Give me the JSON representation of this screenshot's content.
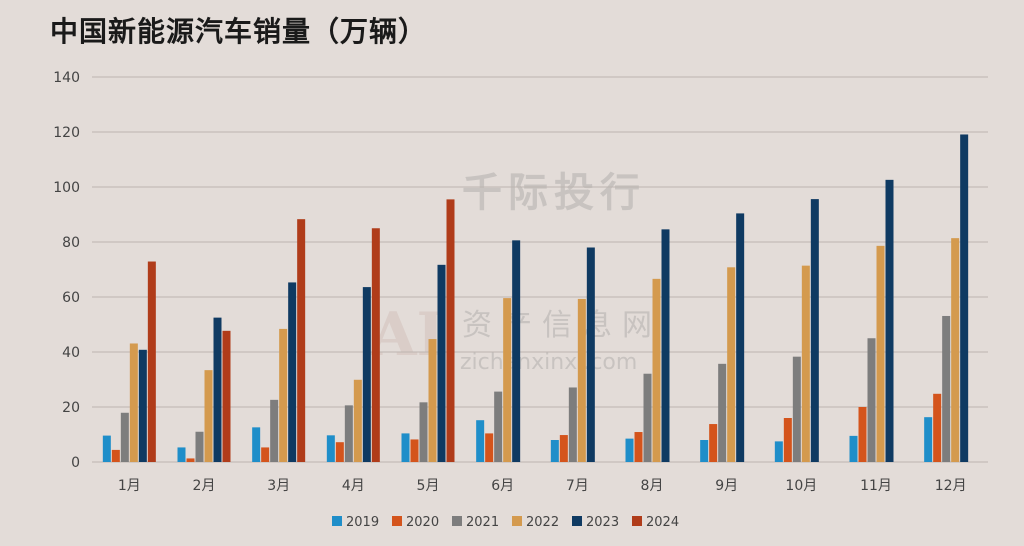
{
  "title": "中国新能源汽车销量（万辆）",
  "watermark": {
    "brand": "千际投行",
    "sub": "资产信息网",
    "site": "zichanxinxi.com",
    "logo_text": "AI"
  },
  "colors": {
    "background": "#e3dcd8",
    "grid": "#bdb5b1",
    "axis_text": "#444444"
  },
  "chart_data": {
    "type": "bar",
    "categories": [
      "1月",
      "2月",
      "3月",
      "4月",
      "5月",
      "6月",
      "7月",
      "8月",
      "9月",
      "10月",
      "11月",
      "12月"
    ],
    "ylim": [
      0,
      140
    ],
    "yticks": [
      0,
      20,
      40,
      60,
      80,
      100,
      120,
      140
    ],
    "grid": true,
    "legend": "bottom-center",
    "series": [
      {
        "name": "2019",
        "color": "#1f8ec9",
        "values": [
          9.6,
          5.3,
          12.6,
          9.7,
          10.4,
          15.2,
          8.0,
          8.5,
          8.0,
          7.5,
          9.5,
          16.3
        ]
      },
      {
        "name": "2020",
        "color": "#d4541c",
        "values": [
          4.4,
          1.3,
          5.3,
          7.2,
          8.2,
          10.4,
          9.8,
          10.9,
          13.8,
          16.0,
          20.0,
          24.8
        ]
      },
      {
        "name": "2021",
        "color": "#7d7d7d",
        "values": [
          17.9,
          11.0,
          22.6,
          20.6,
          21.7,
          25.6,
          27.1,
          32.1,
          35.7,
          38.3,
          45.0,
          53.1
        ]
      },
      {
        "name": "2022",
        "color": "#d49a4e",
        "values": [
          43.1,
          33.4,
          48.4,
          29.9,
          44.7,
          59.6,
          59.3,
          66.6,
          70.8,
          71.4,
          78.6,
          81.4
        ]
      },
      {
        "name": "2023",
        "color": "#0f3a62",
        "values": [
          40.8,
          52.5,
          65.3,
          63.6,
          71.7,
          80.6,
          78.0,
          84.6,
          90.4,
          95.6,
          102.6,
          119.1
        ]
      },
      {
        "name": "2024",
        "color": "#b03c1a",
        "values": [
          72.9,
          47.7,
          88.3,
          85.0,
          95.5,
          null,
          null,
          null,
          null,
          null,
          null,
          null
        ]
      }
    ]
  }
}
